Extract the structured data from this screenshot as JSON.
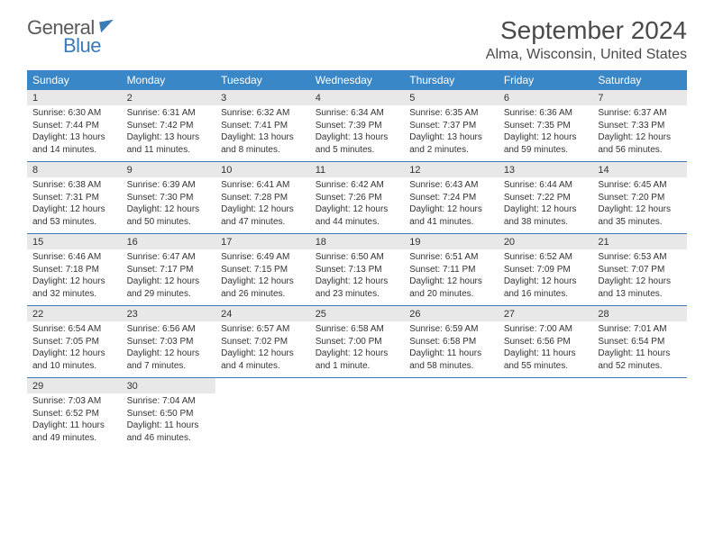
{
  "logo": {
    "general": "General",
    "blue": "Blue"
  },
  "title": "September 2024",
  "location": "Alma, Wisconsin, United States",
  "colors": {
    "header_bg": "#3a87c7",
    "header_text": "#ffffff",
    "daynum_bg": "#e8e8e8",
    "week_border": "#3a7ab8",
    "text": "#333333",
    "title_text": "#4a4a4a",
    "logo_gray": "#5a5a5a",
    "logo_blue": "#3a7ab8"
  },
  "weekdays": [
    "Sunday",
    "Monday",
    "Tuesday",
    "Wednesday",
    "Thursday",
    "Friday",
    "Saturday"
  ],
  "weeks": [
    [
      {
        "num": "1",
        "sunrise": "Sunrise: 6:30 AM",
        "sunset": "Sunset: 7:44 PM",
        "day1": "Daylight: 13 hours",
        "day2": "and 14 minutes."
      },
      {
        "num": "2",
        "sunrise": "Sunrise: 6:31 AM",
        "sunset": "Sunset: 7:42 PM",
        "day1": "Daylight: 13 hours",
        "day2": "and 11 minutes."
      },
      {
        "num": "3",
        "sunrise": "Sunrise: 6:32 AM",
        "sunset": "Sunset: 7:41 PM",
        "day1": "Daylight: 13 hours",
        "day2": "and 8 minutes."
      },
      {
        "num": "4",
        "sunrise": "Sunrise: 6:34 AM",
        "sunset": "Sunset: 7:39 PM",
        "day1": "Daylight: 13 hours",
        "day2": "and 5 minutes."
      },
      {
        "num": "5",
        "sunrise": "Sunrise: 6:35 AM",
        "sunset": "Sunset: 7:37 PM",
        "day1": "Daylight: 13 hours",
        "day2": "and 2 minutes."
      },
      {
        "num": "6",
        "sunrise": "Sunrise: 6:36 AM",
        "sunset": "Sunset: 7:35 PM",
        "day1": "Daylight: 12 hours",
        "day2": "and 59 minutes."
      },
      {
        "num": "7",
        "sunrise": "Sunrise: 6:37 AM",
        "sunset": "Sunset: 7:33 PM",
        "day1": "Daylight: 12 hours",
        "day2": "and 56 minutes."
      }
    ],
    [
      {
        "num": "8",
        "sunrise": "Sunrise: 6:38 AM",
        "sunset": "Sunset: 7:31 PM",
        "day1": "Daylight: 12 hours",
        "day2": "and 53 minutes."
      },
      {
        "num": "9",
        "sunrise": "Sunrise: 6:39 AM",
        "sunset": "Sunset: 7:30 PM",
        "day1": "Daylight: 12 hours",
        "day2": "and 50 minutes."
      },
      {
        "num": "10",
        "sunrise": "Sunrise: 6:41 AM",
        "sunset": "Sunset: 7:28 PM",
        "day1": "Daylight: 12 hours",
        "day2": "and 47 minutes."
      },
      {
        "num": "11",
        "sunrise": "Sunrise: 6:42 AM",
        "sunset": "Sunset: 7:26 PM",
        "day1": "Daylight: 12 hours",
        "day2": "and 44 minutes."
      },
      {
        "num": "12",
        "sunrise": "Sunrise: 6:43 AM",
        "sunset": "Sunset: 7:24 PM",
        "day1": "Daylight: 12 hours",
        "day2": "and 41 minutes."
      },
      {
        "num": "13",
        "sunrise": "Sunrise: 6:44 AM",
        "sunset": "Sunset: 7:22 PM",
        "day1": "Daylight: 12 hours",
        "day2": "and 38 minutes."
      },
      {
        "num": "14",
        "sunrise": "Sunrise: 6:45 AM",
        "sunset": "Sunset: 7:20 PM",
        "day1": "Daylight: 12 hours",
        "day2": "and 35 minutes."
      }
    ],
    [
      {
        "num": "15",
        "sunrise": "Sunrise: 6:46 AM",
        "sunset": "Sunset: 7:18 PM",
        "day1": "Daylight: 12 hours",
        "day2": "and 32 minutes."
      },
      {
        "num": "16",
        "sunrise": "Sunrise: 6:47 AM",
        "sunset": "Sunset: 7:17 PM",
        "day1": "Daylight: 12 hours",
        "day2": "and 29 minutes."
      },
      {
        "num": "17",
        "sunrise": "Sunrise: 6:49 AM",
        "sunset": "Sunset: 7:15 PM",
        "day1": "Daylight: 12 hours",
        "day2": "and 26 minutes."
      },
      {
        "num": "18",
        "sunrise": "Sunrise: 6:50 AM",
        "sunset": "Sunset: 7:13 PM",
        "day1": "Daylight: 12 hours",
        "day2": "and 23 minutes."
      },
      {
        "num": "19",
        "sunrise": "Sunrise: 6:51 AM",
        "sunset": "Sunset: 7:11 PM",
        "day1": "Daylight: 12 hours",
        "day2": "and 20 minutes."
      },
      {
        "num": "20",
        "sunrise": "Sunrise: 6:52 AM",
        "sunset": "Sunset: 7:09 PM",
        "day1": "Daylight: 12 hours",
        "day2": "and 16 minutes."
      },
      {
        "num": "21",
        "sunrise": "Sunrise: 6:53 AM",
        "sunset": "Sunset: 7:07 PM",
        "day1": "Daylight: 12 hours",
        "day2": "and 13 minutes."
      }
    ],
    [
      {
        "num": "22",
        "sunrise": "Sunrise: 6:54 AM",
        "sunset": "Sunset: 7:05 PM",
        "day1": "Daylight: 12 hours",
        "day2": "and 10 minutes."
      },
      {
        "num": "23",
        "sunrise": "Sunrise: 6:56 AM",
        "sunset": "Sunset: 7:03 PM",
        "day1": "Daylight: 12 hours",
        "day2": "and 7 minutes."
      },
      {
        "num": "24",
        "sunrise": "Sunrise: 6:57 AM",
        "sunset": "Sunset: 7:02 PM",
        "day1": "Daylight: 12 hours",
        "day2": "and 4 minutes."
      },
      {
        "num": "25",
        "sunrise": "Sunrise: 6:58 AM",
        "sunset": "Sunset: 7:00 PM",
        "day1": "Daylight: 12 hours",
        "day2": "and 1 minute."
      },
      {
        "num": "26",
        "sunrise": "Sunrise: 6:59 AM",
        "sunset": "Sunset: 6:58 PM",
        "day1": "Daylight: 11 hours",
        "day2": "and 58 minutes."
      },
      {
        "num": "27",
        "sunrise": "Sunrise: 7:00 AM",
        "sunset": "Sunset: 6:56 PM",
        "day1": "Daylight: 11 hours",
        "day2": "and 55 minutes."
      },
      {
        "num": "28",
        "sunrise": "Sunrise: 7:01 AM",
        "sunset": "Sunset: 6:54 PM",
        "day1": "Daylight: 11 hours",
        "day2": "and 52 minutes."
      }
    ],
    [
      {
        "num": "29",
        "sunrise": "Sunrise: 7:03 AM",
        "sunset": "Sunset: 6:52 PM",
        "day1": "Daylight: 11 hours",
        "day2": "and 49 minutes."
      },
      {
        "num": "30",
        "sunrise": "Sunrise: 7:04 AM",
        "sunset": "Sunset: 6:50 PM",
        "day1": "Daylight: 11 hours",
        "day2": "and 46 minutes."
      },
      null,
      null,
      null,
      null,
      null
    ]
  ]
}
